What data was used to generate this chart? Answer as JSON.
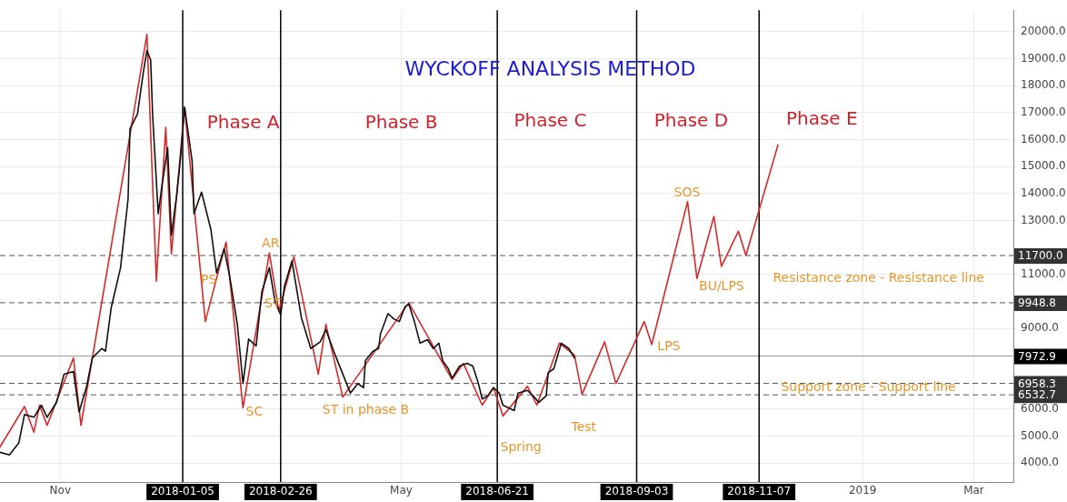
{
  "chart_data": {
    "type": "line",
    "title": "WYCKOFF ANALYSIS METHOD",
    "xlim": [
      "2017-09-30",
      "2019-03-22"
    ],
    "ylim": [
      3300,
      20800
    ],
    "xticks": [
      {
        "value": "2017-11-01",
        "label": "Nov"
      },
      {
        "value": "2018-05-01",
        "label": "May"
      },
      {
        "value": "2019-01-01",
        "label": "2019"
      },
      {
        "value": "2019-03-01",
        "label": "Mar"
      }
    ],
    "yticks": [
      {
        "value": 4000,
        "label": "4000.0"
      },
      {
        "value": 5000,
        "label": "5000.0"
      },
      {
        "value": 6000,
        "label": "6000.0"
      },
      {
        "value": 9000,
        "label": "9000.0"
      },
      {
        "value": 11000,
        "label": "11000.0"
      },
      {
        "value": 13000,
        "label": "13000.0"
      },
      {
        "value": 14000,
        "label": "14000.0"
      },
      {
        "value": 15000,
        "label": "15000.0"
      },
      {
        "value": 16000,
        "label": "16000.0"
      },
      {
        "value": 17000,
        "label": "17000.0"
      },
      {
        "value": 18000,
        "label": "18000.0"
      },
      {
        "value": 19000,
        "label": "19000.0"
      },
      {
        "value": 20000,
        "label": "20000.0"
      }
    ],
    "grid": true,
    "legend": false,
    "marker": "none",
    "line_style": "solid",
    "series": [
      {
        "color": "#111111",
        "x": [
          "2017-09-30",
          "2017-10-05",
          "2017-10-10",
          "2017-10-13",
          "2017-10-18",
          "2017-10-22",
          "2017-10-25",
          "2017-10-30",
          "2017-11-03",
          "2017-11-08",
          "2017-11-11",
          "2017-11-15",
          "2017-11-18",
          "2017-11-23",
          "2017-11-25",
          "2017-11-28",
          "2017-12-03",
          "2017-12-07",
          "2017-12-08",
          "2017-12-12",
          "2017-12-15",
          "2017-12-17",
          "2017-12-19",
          "2017-12-20",
          "2017-12-23",
          "2017-12-25",
          "2017-12-28",
          "2017-12-30",
          "2018-01-02",
          "2018-01-04",
          "2018-01-06",
          "2018-01-10",
          "2018-01-11",
          "2018-01-15",
          "2018-01-20",
          "2018-01-23",
          "2018-01-27",
          "2018-01-30",
          "2018-02-03",
          "2018-02-06",
          "2018-02-09",
          "2018-02-13",
          "2018-02-16",
          "2018-02-20",
          "2018-02-23",
          "2018-02-26",
          "2018-02-28",
          "2018-03-04",
          "2018-03-09",
          "2018-03-14",
          "2018-03-19",
          "2018-03-22",
          "2018-03-27",
          "2018-04-04",
          "2018-04-08",
          "2018-04-11",
          "2018-04-12",
          "2018-04-16",
          "2018-04-19",
          "2018-04-20",
          "2018-04-24",
          "2018-04-27",
          "2018-04-30",
          "2018-05-03",
          "2018-05-05",
          "2018-05-08",
          "2018-05-11",
          "2018-05-15",
          "2018-05-18",
          "2018-05-21",
          "2018-05-23",
          "2018-05-26",
          "2018-05-28",
          "2018-06-01",
          "2018-06-05",
          "2018-06-08",
          "2018-06-11",
          "2018-06-13",
          "2018-06-16",
          "2018-06-19",
          "2018-06-22",
          "2018-06-24",
          "2018-06-27",
          "2018-06-30",
          "2018-07-02",
          "2018-07-07",
          "2018-07-10",
          "2018-07-13",
          "2018-07-17",
          "2018-07-18",
          "2018-07-21",
          "2018-07-25",
          "2018-07-29",
          "2018-08-01"
        ],
        "values": [
          4400,
          4300,
          4750,
          5800,
          5700,
          6150,
          5700,
          6250,
          7300,
          7400,
          5900,
          6850,
          7900,
          8250,
          8150,
          9750,
          11250,
          13800,
          16400,
          16950,
          18450,
          19300,
          18950,
          16950,
          13250,
          14300,
          15700,
          12450,
          14050,
          15450,
          17200,
          15200,
          13250,
          14050,
          12650,
          11050,
          11950,
          10900,
          9150,
          6950,
          8600,
          8350,
          10350,
          11250,
          10000,
          9500,
          10550,
          11500,
          9400,
          8250,
          8500,
          8950,
          8000,
          6600,
          6950,
          6800,
          7800,
          8150,
          8250,
          8800,
          9550,
          9350,
          9250,
          9800,
          9900,
          9250,
          8450,
          8580,
          8250,
          8450,
          7800,
          7500,
          7150,
          7600,
          7700,
          7600,
          6950,
          6380,
          6500,
          6800,
          6600,
          6150,
          6050,
          5950,
          6600,
          6700,
          6500,
          6250,
          6500,
          7350,
          7500,
          8450,
          8250,
          7900
        ]
      },
      {
        "color": "#d42a2a",
        "x": [
          "2017-09-30",
          "2017-10-13",
          "2017-10-18",
          "2017-10-21",
          "2017-10-25",
          "2017-11-08",
          "2017-11-12",
          "2017-12-17",
          "2017-12-22",
          "2017-12-27",
          "2017-12-30",
          "2018-01-06",
          "2018-01-17",
          "2018-01-28",
          "2018-02-06",
          "2018-02-20",
          "2018-02-25",
          "2018-03-05",
          "2018-03-18",
          "2018-03-22",
          "2018-03-31",
          "2018-05-05",
          "2018-05-28",
          "2018-06-03",
          "2018-06-13",
          "2018-06-19",
          "2018-06-24",
          "2018-07-07",
          "2018-07-12",
          "2018-07-24",
          "2018-08-01",
          "2018-08-05",
          "2018-08-17",
          "2018-08-23",
          "2018-09-07",
          "2018-09-11",
          "2018-09-30",
          "2018-10-05",
          "2018-10-14",
          "2018-10-18",
          "2018-10-27",
          "2018-10-31",
          "2018-11-17"
        ],
        "values": [
          4600,
          6100,
          5150,
          6150,
          5400,
          7900,
          5400,
          19900,
          10750,
          16450,
          11750,
          17200,
          9250,
          12200,
          6050,
          11800,
          9650,
          11650,
          7300,
          9150,
          6450,
          9950,
          7100,
          7700,
          6150,
          6800,
          5750,
          6850,
          6150,
          8450,
          8000,
          6550,
          8500,
          6950,
          9250,
          8400,
          13700,
          10850,
          13150,
          11300,
          12600,
          11700,
          15800
        ]
      }
    ],
    "ref_lines": [
      {
        "axis": "y",
        "value": 11700,
        "label": "11700.0",
        "line_style": "dashed",
        "color": "#555555"
      },
      {
        "axis": "y",
        "value": 9948.8,
        "label": "9948.8",
        "line_style": "dashed",
        "color": "#555555"
      },
      {
        "axis": "y",
        "value": 7972.9,
        "label": "7972.9",
        "line_style": "solid",
        "color": "#999999"
      },
      {
        "axis": "y",
        "value": 6958.3,
        "label": "6958.3",
        "line_style": "dashed",
        "color": "#555555"
      },
      {
        "axis": "y",
        "value": 6532.7,
        "label": "6532.7",
        "line_style": "dashed",
        "color": "#555555"
      },
      {
        "axis": "x",
        "value": "2018-01-05",
        "label": "2018-01-05",
        "line_style": "solid",
        "color": "#000000"
      },
      {
        "axis": "x",
        "value": "2018-02-26",
        "label": "2018-02-26",
        "line_style": "solid",
        "color": "#000000"
      },
      {
        "axis": "x",
        "value": "2018-06-21",
        "label": "2018-06-21",
        "line_style": "solid",
        "color": "#000000"
      },
      {
        "axis": "x",
        "value": "2018-09-03",
        "label": "2018-09-03",
        "line_style": "solid",
        "color": "#000000"
      },
      {
        "axis": "x",
        "value": "2018-11-07",
        "label": "2018-11-07",
        "line_style": "solid",
        "color": "#000000"
      }
    ],
    "annotations": [
      "Phase A",
      "Phase B",
      "Phase C",
      "Phase D",
      "Phase E",
      "SOS",
      "AR",
      "PS",
      "ST",
      "SC",
      "ST in phase B",
      "Spring",
      "Test",
      "LPS",
      "BU/LPS",
      "Resistance zone - Resistance line",
      "Support zone - Support line"
    ]
  }
}
